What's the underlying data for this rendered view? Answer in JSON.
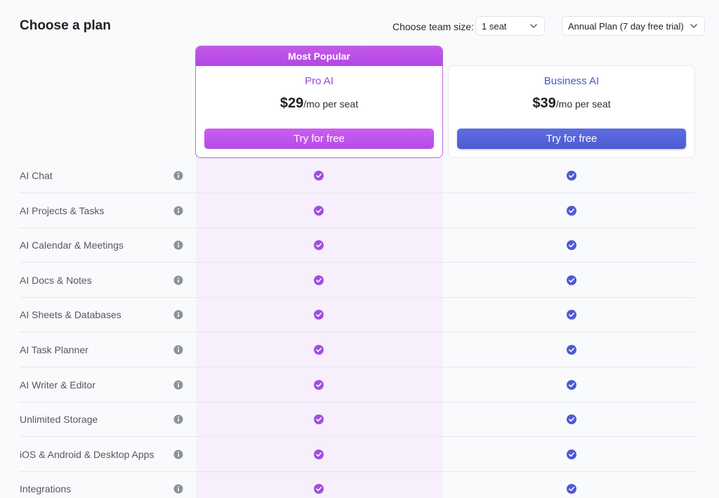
{
  "header": {
    "title": "Choose a plan",
    "team_size_label": "Choose team size:",
    "seat_value": "1 seat",
    "billing_value": "Annual Plan (7 day free trial)"
  },
  "plans": {
    "pro": {
      "badge": "Most Popular",
      "name": "Pro AI",
      "price": "$29",
      "unit": "/mo per seat",
      "cta": "Try for free",
      "accent": "#b44de6"
    },
    "business": {
      "name": "Business AI",
      "price": "$39",
      "unit": "/mo per seat",
      "cta": "Try for free",
      "accent": "#4e5bd4"
    }
  },
  "features": [
    "AI Chat",
    "AI Projects & Tasks",
    "AI Calendar & Meetings",
    "AI Docs & Notes",
    "AI Sheets & Databases",
    "AI Task Planner",
    "AI Writer & Editor",
    "Unlimited Storage",
    "iOS & Android & Desktop Apps",
    "Integrations"
  ],
  "icons": {
    "info": "info-icon",
    "check": "check-circle-icon",
    "chevron": "chevron-down-icon"
  }
}
